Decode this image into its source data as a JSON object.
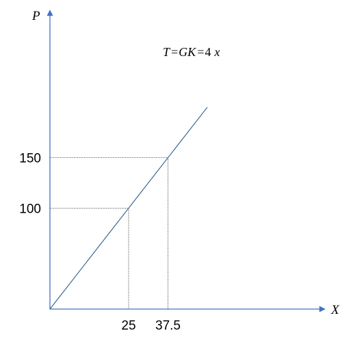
{
  "chart_data": {
    "type": "line",
    "title": "",
    "xlabel": "X",
    "ylabel": "P",
    "xlim": [
      0,
      65
    ],
    "ylim": [
      0,
      195
    ],
    "grid": false,
    "series": [
      {
        "name": "",
        "equation": "4x",
        "x": [
          0,
          50
        ],
        "y": [
          0,
          200
        ]
      }
    ],
    "line_label": {
      "lhs": "T",
      "mid": "GK",
      "coef": "4",
      "var": "x"
    },
    "reference_points": [
      {
        "x": 25,
        "y": 100,
        "x_label": "25",
        "y_label": "100"
      },
      {
        "x": 37.5,
        "y": 150,
        "x_label": "37.5",
        "y_label": "150"
      }
    ],
    "colors": {
      "axis": "#4472C4",
      "line": "#2E5D8E",
      "guide": "#000000"
    }
  }
}
